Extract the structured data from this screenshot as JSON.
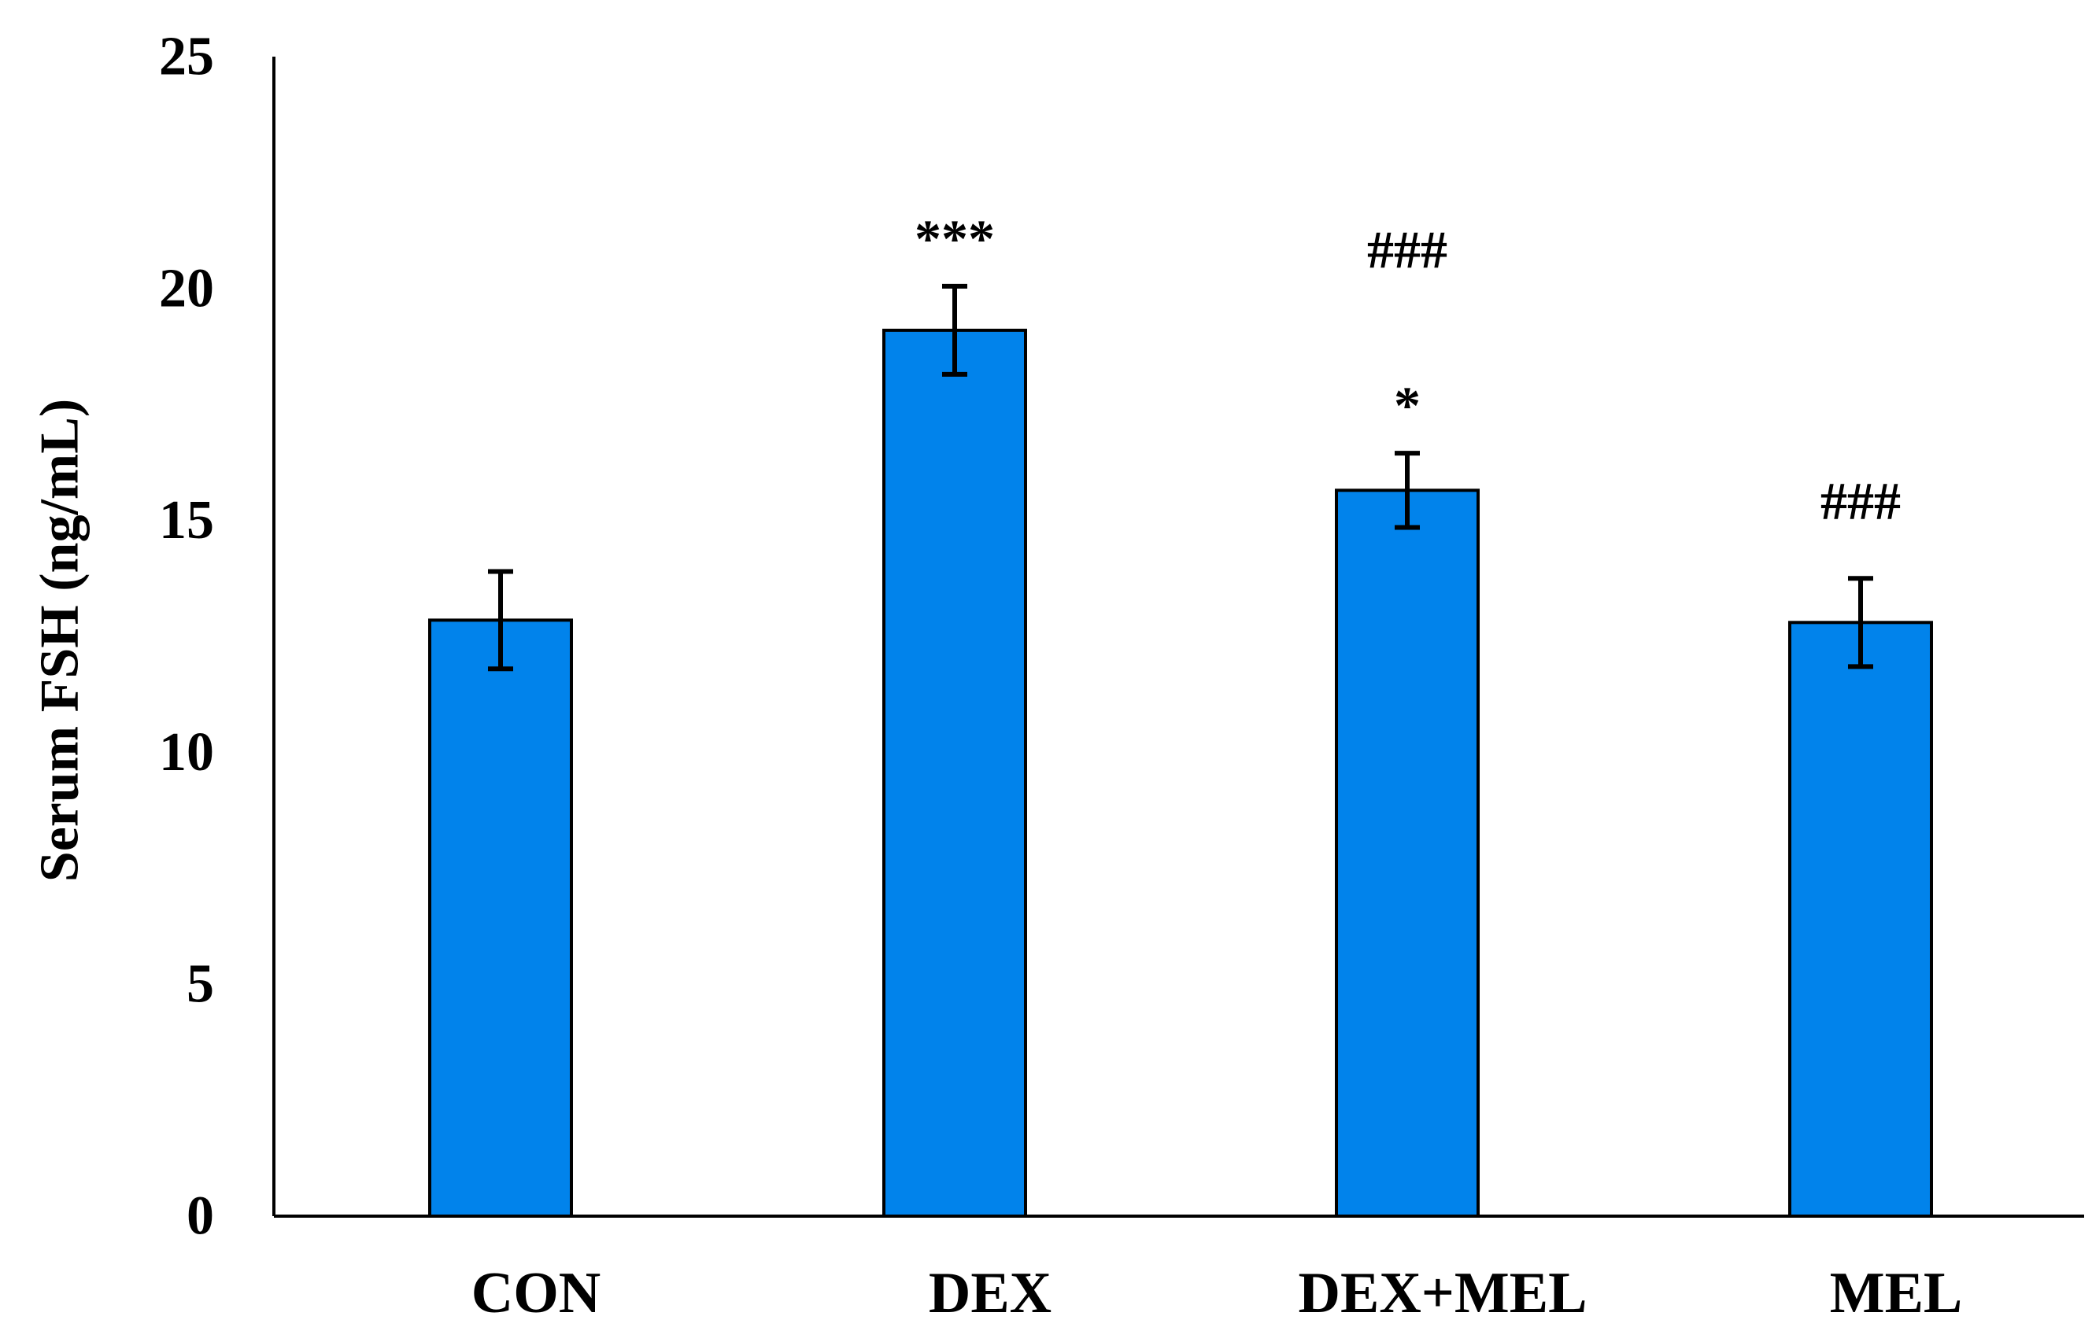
{
  "chart_data": {
    "type": "bar",
    "title": "",
    "xlabel": "",
    "ylabel": "Serum FSH (ng/mL)",
    "ylim": [
      0,
      25
    ],
    "yticks": [
      0,
      5,
      10,
      15,
      20,
      25
    ],
    "grid": false,
    "legend": "none",
    "bar_color": "#0183EB",
    "categories": [
      "CON",
      "DEX",
      "DEX+MEL",
      "MEL"
    ],
    "series": [
      {
        "values": [
          12.85,
          19.1,
          15.65,
          12.8
        ],
        "errors": [
          1.05,
          0.95,
          0.8,
          0.95
        ]
      }
    ],
    "annotations": [
      {
        "category": "CON",
        "lines": []
      },
      {
        "category": "DEX",
        "lines": [
          "***"
        ]
      },
      {
        "category": "DEX+MEL",
        "lines": [
          "###",
          "*"
        ]
      },
      {
        "category": "MEL",
        "lines": [
          "###"
        ]
      }
    ]
  }
}
